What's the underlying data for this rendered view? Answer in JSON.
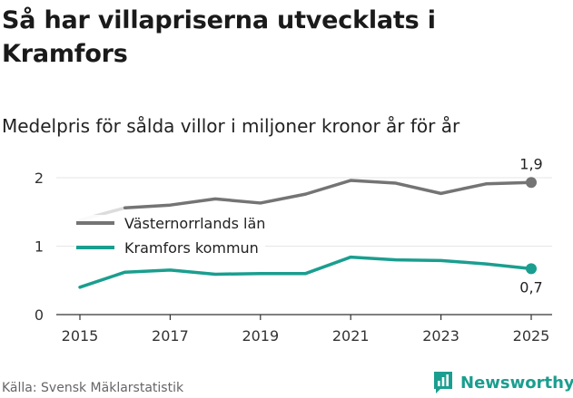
{
  "header": {
    "title": "Så har villapriserna utvecklats i Kramfors",
    "subtitle": "Medelpris för sålda villor i miljoner kronor år för år"
  },
  "footer": {
    "source": "Källa: Svensk Mäklarstatistik",
    "brand": "Newsworthy",
    "brand_icon": "bar-chart-logo-icon"
  },
  "colors": {
    "vasternorrland": "#747474",
    "vasternorrland_early": "#dcdcdc",
    "kramfors": "#1a9e8f",
    "grid": "#e6e6e6",
    "axis": "#333333",
    "brand": "#1a9e8f"
  },
  "chart_data": {
    "type": "line",
    "title": "Medelpris för sålda villor i miljoner kronor år för år",
    "xlabel": "",
    "ylabel": "",
    "x": [
      2015,
      2016,
      2017,
      2018,
      2019,
      2020,
      2021,
      2022,
      2023,
      2024,
      2025
    ],
    "xticks": [
      "2015",
      "2017",
      "2019",
      "2021",
      "2023",
      "2025"
    ],
    "ylim": [
      0,
      2.3
    ],
    "yticks": [
      "0",
      "1",
      "2"
    ],
    "grid": true,
    "legend_position": "top-left",
    "series": [
      {
        "name": "Västernorrlands län",
        "values": [
          1.38,
          1.56,
          1.6,
          1.69,
          1.63,
          1.76,
          1.96,
          1.92,
          1.77,
          1.91,
          1.93
        ],
        "end_label": "1,9"
      },
      {
        "name": "Kramfors kommun",
        "values": [
          0.4,
          0.62,
          0.65,
          0.59,
          0.6,
          0.6,
          0.84,
          0.8,
          0.79,
          0.74,
          0.67
        ],
        "end_label": "0,7"
      }
    ]
  }
}
